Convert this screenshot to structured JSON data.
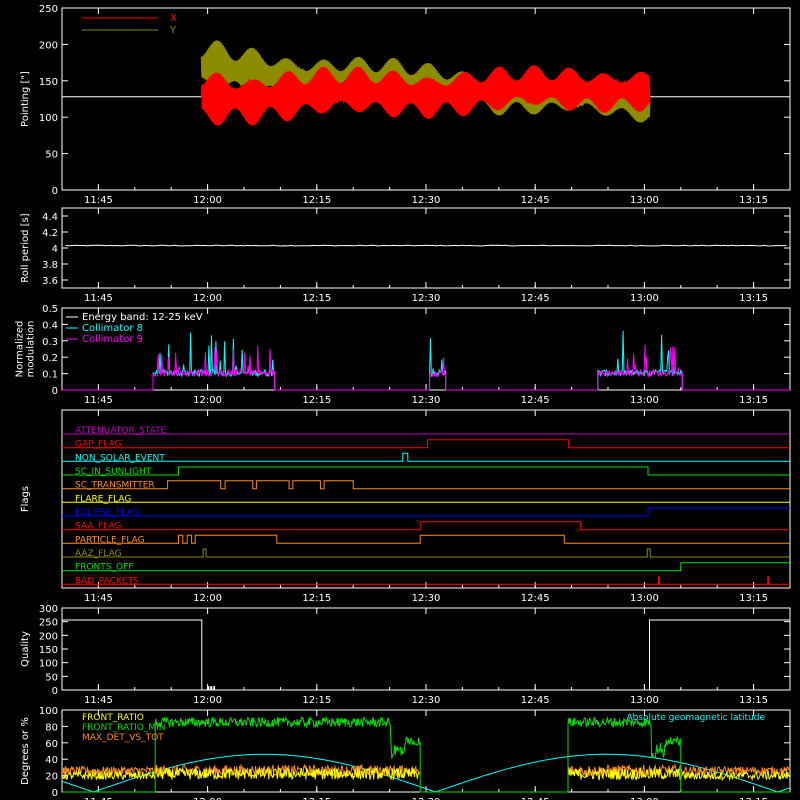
{
  "colors": {
    "background": "#000000",
    "axes": "#ffffff",
    "red": "#ff0000",
    "olive": "#8c8c00",
    "cyan": "#00ffff",
    "magenta": "#ff00ff",
    "white": "#ffffff",
    "green": "#00e000",
    "yellow": "#ffff00",
    "orange": "#ff8c1a",
    "blue": "#0000ff",
    "purple": "#c000c0"
  },
  "time_axis": {
    "range_minutes": [
      700,
      800
    ],
    "ticks": [
      {
        "t": 705,
        "label": "11:45"
      },
      {
        "t": 720,
        "label": "12:00"
      },
      {
        "t": 735,
        "label": "12:15"
      },
      {
        "t": 750,
        "label": "12:30"
      },
      {
        "t": 765,
        "label": "12:45"
      },
      {
        "t": 780,
        "label": "13:00"
      },
      {
        "t": 795,
        "label": "13:15"
      }
    ]
  },
  "chart_data": [
    {
      "id": "pointing",
      "type": "line",
      "ylabel": "Pointing [\"]",
      "ylim": [
        0,
        250
      ],
      "yticks": [
        0,
        50,
        100,
        150,
        200,
        250
      ],
      "series": [
        {
          "name": "X",
          "color": "red",
          "x_range": [
            719.2,
            780.7
          ],
          "center": 128,
          "amp_start": 88,
          "amp_end": 65,
          "center_start": 128,
          "center_end": 140
        },
        {
          "name": "Y",
          "color": "olive",
          "x_range": [
            719.2,
            780.7
          ],
          "center": 140,
          "amp_start": 88,
          "amp_end": 60,
          "center_start": 165,
          "center_end": 120
        }
      ],
      "baseline": {
        "y": 128,
        "color": "white"
      }
    },
    {
      "id": "roll",
      "type": "line",
      "ylabel": "Roll period [s]",
      "ylim": [
        3.5,
        4.5
      ],
      "yticks": [
        3.6,
        3.8,
        4.0,
        4.2,
        4.4
      ],
      "series": [
        {
          "name": "",
          "color": "white",
          "value": 4.03
        }
      ]
    },
    {
      "id": "modulation",
      "type": "line",
      "ylabel": "Normalized\nmodulation",
      "ylim": [
        0,
        0.5
      ],
      "yticks": [
        0.0,
        0.1,
        0.2,
        0.3,
        0.4,
        0.5
      ],
      "legend": [
        "Energy band: 12-25 keV",
        "Collimator 8",
        "Collimator 9"
      ],
      "segments": [
        [
          712.5,
          729.2
        ],
        [
          750.5,
          752.7
        ],
        [
          773.6,
          785.2
        ]
      ],
      "level": 0.1,
      "series": [
        {
          "name": "Collimator 8",
          "color": "cyan"
        },
        {
          "name": "Collimator 9",
          "color": "magenta"
        }
      ]
    },
    {
      "id": "flags",
      "type": "step",
      "ylabel": "Flags",
      "flags": [
        {
          "label": "ATTENUATOR_STATE",
          "color": "purple",
          "changes": []
        },
        {
          "label": "GAP_FLAG",
          "color": "red",
          "changes": [
            [
              750.2,
              1
            ],
            [
              769.6,
              0
            ]
          ]
        },
        {
          "label": "NON_SOLAR_EVENT",
          "color": "cyan",
          "changes": [
            [
              746.8,
              1
            ],
            [
              747.5,
              0
            ]
          ]
        },
        {
          "label": "SC_IN_SUNLIGHT",
          "color": "green",
          "changes": [
            [
              716,
              1
            ],
            [
              780.5,
              0
            ]
          ]
        },
        {
          "label": "SC_TRANSMITTER",
          "color": "orange",
          "changes": [
            [
              714.5,
              1
            ],
            [
              721.8,
              0
            ],
            [
              721.8,
              0
            ],
            [
              722.4,
              1
            ],
            [
              726.2,
              0
            ],
            [
              726.7,
              1
            ],
            [
              731.2,
              0
            ],
            [
              731.7,
              1
            ],
            [
              735.5,
              0
            ],
            [
              736,
              1
            ],
            [
              740,
              0
            ]
          ]
        },
        {
          "label": "FLARE_FLAG",
          "color": "yellow",
          "changes": []
        },
        {
          "label": "ECLIPSE_FLAG",
          "color": "blue",
          "changes": [
            [
              716,
              0
            ],
            [
              780.5,
              1
            ]
          ]
        },
        {
          "label": "SAA_FLAG",
          "color": "red",
          "changes": [
            [
              749.2,
              1
            ],
            [
              771.2,
              0
            ]
          ]
        },
        {
          "label": "PARTICLE_FLAG",
          "color": "orange",
          "changes": [
            [
              716,
              1
            ],
            [
              716.6,
              0
            ],
            [
              717.2,
              1
            ],
            [
              717.8,
              0
            ],
            [
              718.3,
              1
            ],
            [
              729.5,
              0
            ],
            [
              749.2,
              1
            ],
            [
              769,
              0
            ]
          ]
        },
        {
          "label": "AAZ_FLAG",
          "color": "olive",
          "changes": [
            [
              719.4,
              1
            ],
            [
              719.8,
              0
            ],
            [
              780.4,
              1
            ],
            [
              780.8,
              0
            ]
          ]
        },
        {
          "label": "FRONTS_OFF",
          "color": "green",
          "changes": [
            [
              712.8,
              0
            ],
            [
              785,
              1
            ]
          ]
        },
        {
          "label": "BAD_PACKETS",
          "color": "red",
          "changes": []
        }
      ]
    },
    {
      "id": "quality",
      "type": "step",
      "ylabel": "Quality",
      "ylim": [
        0,
        300
      ],
      "yticks": [
        0,
        50,
        100,
        150,
        200,
        250,
        300
      ],
      "levels": [
        [
          700,
          256
        ],
        [
          719.2,
          0
        ],
        [
          780.7,
          256
        ],
        [
          800,
          256
        ]
      ]
    },
    {
      "id": "fronts",
      "type": "line",
      "ylabel": "Degrees or %",
      "ylim": [
        0,
        100
      ],
      "yticks": [
        0,
        20,
        40,
        60,
        80,
        100
      ],
      "legend": [
        "FRONT_RATIO",
        "FRONT_RATIO_MIN",
        "MAX_DET_VS_TOT"
      ],
      "right_label": "Absolute geomagnetic latitude",
      "series": [
        {
          "name": "FRONT_RATIO",
          "color": "yellow"
        },
        {
          "name": "FRONT_RATIO_MIN",
          "color": "green"
        },
        {
          "name": "MAX_DET_VS_TOT",
          "color": "orange"
        },
        {
          "name": "Absolute geomagnetic latitude",
          "color": "cyan"
        }
      ]
    }
  ]
}
